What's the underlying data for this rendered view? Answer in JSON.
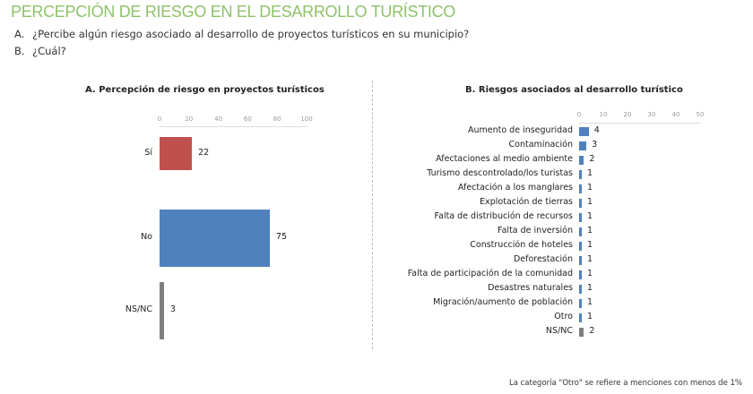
{
  "header": {
    "title": "PERCEPCIÓN DE RIESGO EN EL DESARROLLO TURÍSTICO",
    "questions": [
      {
        "letter": "A.",
        "text": "¿Percibe algún riesgo asociado al desarrollo de proyectos turísticos en su municipio?"
      },
      {
        "letter": "B.",
        "text": "¿Cuál?"
      }
    ]
  },
  "chart_data": [
    {
      "type": "bar",
      "orientation": "horizontal",
      "title": "A. Percepción de riesgo en proyectos turísticos",
      "categories": [
        "Sí",
        "No",
        "NS/NC"
      ],
      "values": [
        22,
        75,
        3
      ],
      "colors": [
        "#c0504d",
        "#4f81bd",
        "#7f7f7f"
      ],
      "xlim": [
        0,
        100
      ],
      "ticks": [
        "0",
        "20",
        "40",
        "60",
        "80",
        "100"
      ]
    },
    {
      "type": "bar",
      "orientation": "horizontal",
      "title": "B. Riesgos asociados al desarrollo turístico",
      "categories": [
        "Aumento de inseguridad",
        "Contaminación",
        "Afectaciones al medio ambiente",
        "Turismo descontrolado/los turistas",
        "Afectación a los manglares",
        "Explotación de tierras",
        "Falta de distribución de recursos",
        "Falta de inversión",
        "Construcción de hoteles",
        "Deforestación",
        "Falta de participación de la comunidad",
        "Desastres naturales",
        "Migración/aumento de población",
        "Otro",
        "NS/NC"
      ],
      "values": [
        4,
        3,
        2,
        1,
        1,
        1,
        1,
        1,
        1,
        1,
        1,
        1,
        1,
        1,
        2
      ],
      "colors": [
        "#4f81bd",
        "#4f81bd",
        "#4f81bd",
        "#4f81bd",
        "#4f81bd",
        "#4f81bd",
        "#4f81bd",
        "#4f81bd",
        "#4f81bd",
        "#4f81bd",
        "#4f81bd",
        "#4f81bd",
        "#4f81bd",
        "#4f81bd",
        "#7f7f7f"
      ],
      "xlim": [
        0,
        50
      ],
      "ticks": [
        "0",
        "10",
        "20",
        "30",
        "40",
        "50"
      ]
    }
  ],
  "footnote": "La categoría \"Otro\" se refiere a menciones con menos de 1%"
}
